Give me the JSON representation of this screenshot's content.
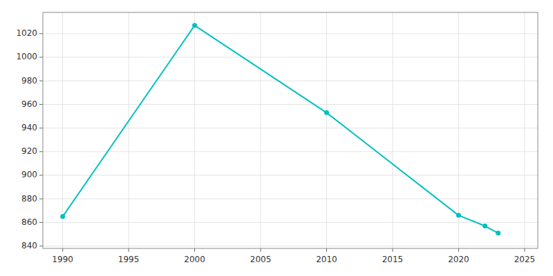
{
  "chart_data": {
    "type": "line",
    "x": [
      1990,
      2000,
      2010,
      2020,
      2022,
      2023
    ],
    "values": [
      865,
      1027,
      953,
      866,
      857,
      851
    ],
    "color": "#00C0C0",
    "marker": "circle",
    "xlim": [
      1988.5,
      2026
    ],
    "ylim": [
      838,
      1038
    ],
    "xticks": [
      1990,
      1995,
      2000,
      2005,
      2010,
      2015,
      2020,
      2025
    ],
    "yticks": [
      840,
      860,
      880,
      900,
      920,
      940,
      960,
      980,
      1000,
      1020
    ],
    "grid": true
  }
}
